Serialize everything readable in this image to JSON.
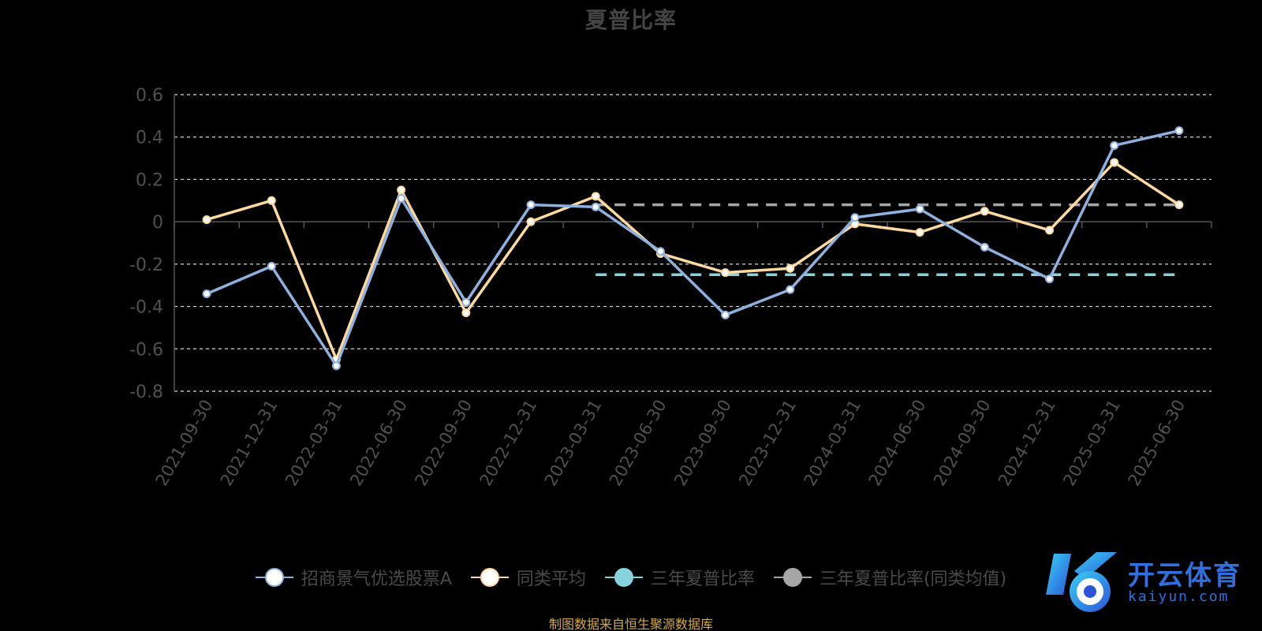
{
  "chart_data": {
    "type": "line",
    "title": "夏普比率",
    "categories": [
      "2021-09-30",
      "2021-12-31",
      "2022-03-31",
      "2022-06-30",
      "2022-09-30",
      "2022-12-31",
      "2023-03-31",
      "2023-06-30",
      "2023-09-30",
      "2023-12-31",
      "2024-03-31",
      "2024-06-30",
      "2024-09-30",
      "2024-12-31",
      "2025-03-31",
      "2025-06-30"
    ],
    "y_ticks": [
      "0.6",
      "0.4",
      "0.2",
      "0",
      "-0.2",
      "-0.4",
      "-0.6",
      "-0.8"
    ],
    "ylim": [
      -0.8,
      0.6
    ],
    "grid": true,
    "legend_position": "bottom",
    "series": [
      {
        "name": "招商景气优选股票A",
        "color": "#8fb1e0",
        "values": [
          -0.34,
          -0.21,
          -0.68,
          0.11,
          -0.38,
          0.08,
          0.07,
          -0.14,
          -0.44,
          -0.32,
          0.02,
          0.06,
          -0.12,
          -0.27,
          0.36,
          0.43
        ]
      },
      {
        "name": "同类平均",
        "color": "#fdd9a0",
        "values": [
          0.01,
          0.1,
          -0.65,
          0.15,
          -0.43,
          0.0,
          0.12,
          -0.15,
          -0.24,
          -0.22,
          -0.01,
          -0.05,
          0.05,
          -0.04,
          0.28,
          0.08
        ]
      },
      {
        "name": "三年夏普比率",
        "color": "#86d3dc",
        "type": "reference",
        "value": -0.25,
        "from": "2023-03-31",
        "to": "2025-06-30"
      },
      {
        "name": "三年夏普比率(同类均值)",
        "color": "#a6a6a6",
        "type": "reference",
        "value": 0.08,
        "from": "2023-03-31",
        "to": "2025-06-30"
      }
    ]
  },
  "source_note": "制图数据来自恒生聚源数据库",
  "watermark": {
    "brand": "开云体育",
    "site": "kaiyun.com"
  }
}
